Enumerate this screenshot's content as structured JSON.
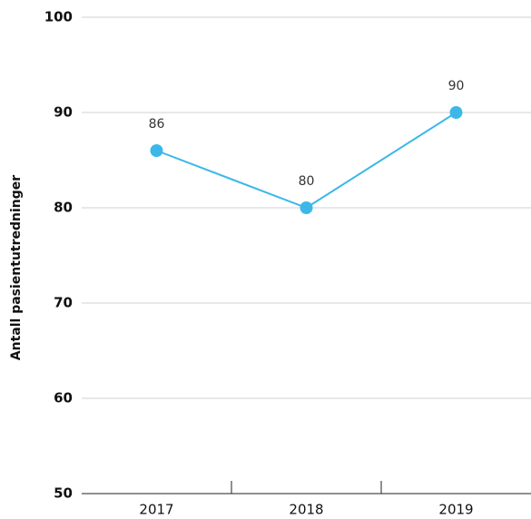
{
  "chart_data": {
    "type": "line",
    "y_label": "Antall pasientutredninger",
    "categories": [
      "2017",
      "2018",
      "2019"
    ],
    "series": [
      {
        "name": null,
        "color": "#3bb8e8",
        "values": [
          86,
          80,
          90
        ]
      }
    ],
    "ylim": [
      50,
      100
    ],
    "yticks": [
      50,
      60,
      70,
      80,
      90,
      100
    ],
    "grid": true
  }
}
